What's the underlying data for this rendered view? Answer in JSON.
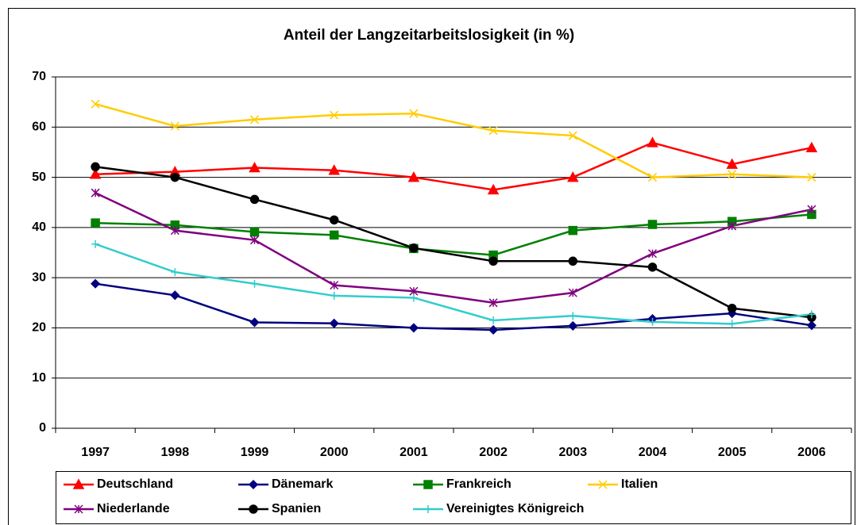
{
  "chart_data": {
    "type": "line",
    "title": "Anteil der Langzeitarbeitslosigkeit (in %)",
    "categories": [
      "1997",
      "1998",
      "1999",
      "2000",
      "2001",
      "2002",
      "2003",
      "2004",
      "2005",
      "2006"
    ],
    "ylim": [
      0,
      70
    ],
    "yticks": [
      0,
      10,
      20,
      30,
      40,
      50,
      60,
      70
    ],
    "grid": true,
    "legend": "bottom",
    "series": [
      {
        "name": "Deutschland",
        "color": "#ff0000",
        "marker": "triangle",
        "values": [
          50.6,
          51.1,
          51.9,
          51.4,
          50.0,
          47.5,
          50.0,
          56.9,
          52.6,
          55.9
        ]
      },
      {
        "name": "Dänemark",
        "color": "#000080",
        "marker": "diamond",
        "values": [
          28.8,
          26.5,
          21.1,
          20.9,
          20.0,
          19.6,
          20.4,
          21.8,
          22.9,
          20.5
        ]
      },
      {
        "name": "Frankreich",
        "color": "#008000",
        "marker": "square",
        "values": [
          40.9,
          40.5,
          39.1,
          38.5,
          35.8,
          34.5,
          39.4,
          40.6,
          41.2,
          42.6
        ]
      },
      {
        "name": "Italien",
        "color": "#ffcc00",
        "marker": "x",
        "values": [
          64.6,
          60.2,
          61.5,
          62.4,
          62.7,
          59.3,
          58.3,
          50.0,
          50.6,
          50.0
        ]
      },
      {
        "name": "Niederlande",
        "color": "#800080",
        "marker": "star",
        "values": [
          46.9,
          39.4,
          37.5,
          28.5,
          27.3,
          25.0,
          27.0,
          34.8,
          40.3,
          43.6
        ]
      },
      {
        "name": "Spanien",
        "color": "#000000",
        "marker": "circle",
        "values": [
          52.1,
          50.0,
          45.6,
          41.5,
          35.9,
          33.3,
          33.3,
          32.1,
          23.9,
          22.1
        ]
      },
      {
        "name": "Vereinigtes Königreich",
        "color": "#33cccc",
        "marker": "plus",
        "values": [
          36.7,
          31.1,
          28.8,
          26.4,
          26.0,
          21.5,
          22.4,
          21.2,
          20.8,
          22.7
        ]
      }
    ]
  }
}
